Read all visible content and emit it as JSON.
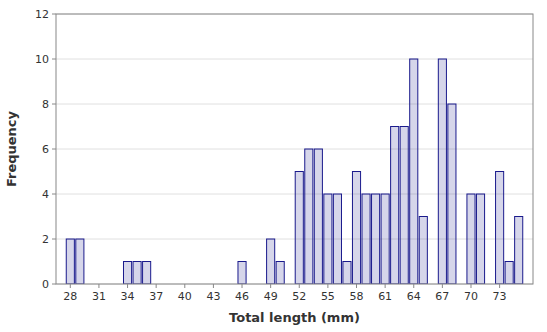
{
  "chart_data": {
    "type": "bar",
    "xlabel": "Total length (mm)",
    "ylabel": "Frequency",
    "x": [
      28,
      29,
      31,
      32,
      34,
      35,
      36,
      46,
      49,
      50,
      52,
      53,
      54,
      55,
      56,
      57,
      58,
      59,
      60,
      61,
      62,
      63,
      64,
      65,
      67,
      68,
      70,
      71,
      73,
      74,
      75
    ],
    "values": [
      2,
      2,
      0,
      0,
      1,
      1,
      1,
      1,
      2,
      1,
      5,
      6,
      6,
      4,
      4,
      1,
      5,
      4,
      4,
      4,
      7,
      7,
      10,
      3,
      10,
      8,
      4,
      4,
      5,
      1,
      3
    ],
    "color": "#1a1a8c",
    "xlim": [
      26.5,
      76.5
    ],
    "xticks": [
      28,
      31,
      34,
      37,
      40,
      43,
      46,
      49,
      52,
      55,
      58,
      61,
      64,
      67,
      70,
      73
    ],
    "ylim": [
      0,
      12
    ],
    "yticks": [
      0,
      2,
      4,
      6,
      8,
      10,
      12
    ],
    "grid": true
  }
}
